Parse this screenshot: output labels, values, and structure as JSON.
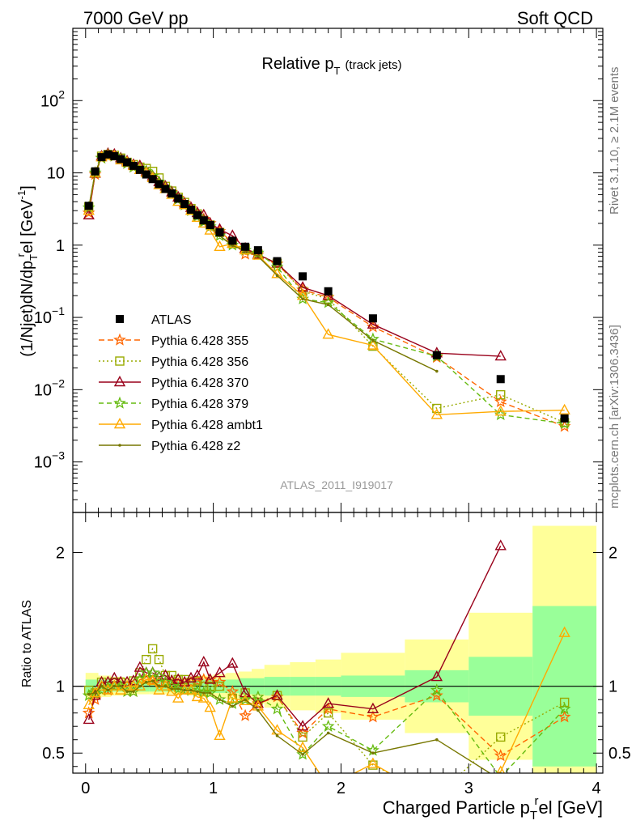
{
  "header": {
    "left": "7000 GeV pp",
    "right": "Soft QCD"
  },
  "side_labels": {
    "rivet": "Rivet 3.1.10, ≥ 2.1M events",
    "mcplots": "mcplots.cern.ch [arXiv:1306.3436]"
  },
  "chart_data": [
    {
      "type": "scatter",
      "title": "Relative p_T (track jets)",
      "title_main": "Relative p",
      "title_sub": "T",
      "title_suffix": "(track jets)",
      "analysis_id": "ATLAS_2011_I919017",
      "ylabel": "(1/Njet)dN/dp_T^rel [GeV^-1]",
      "ylabel_parts": {
        "a": "(1/Njet)dN/dp",
        "sub": "T",
        "sup": "r",
        "b": "el [GeV",
        "exp": "-1",
        "c": "]"
      },
      "yscale": "log",
      "xlim": [
        -0.1,
        4.05
      ],
      "ylim": [
        0.0002,
        1000
      ],
      "ytick_labels": [
        {
          "v": 0.001,
          "base": "10",
          "exp": "−3"
        },
        {
          "v": 0.01,
          "base": "10",
          "exp": "−2"
        },
        {
          "v": 0.1,
          "base": "10",
          "exp": "−1"
        },
        {
          "v": 1,
          "base": "1",
          "exp": ""
        },
        {
          "v": 10,
          "base": "10",
          "exp": ""
        },
        {
          "v": 100,
          "base": "10",
          "exp": "2"
        }
      ],
      "legend_position": "left, mid-height",
      "data": {
        "name": "ATLAS",
        "x": [
          0.025,
          0.075,
          0.125,
          0.175,
          0.225,
          0.275,
          0.325,
          0.375,
          0.425,
          0.475,
          0.525,
          0.575,
          0.625,
          0.675,
          0.725,
          0.775,
          0.825,
          0.875,
          0.925,
          0.975,
          1.05,
          1.15,
          1.25,
          1.35,
          1.5,
          1.7,
          1.9,
          2.25,
          2.75,
          3.25,
          3.75
        ],
        "y": [
          3.5,
          10.5,
          16.5,
          18,
          17,
          15.5,
          14,
          12.5,
          11,
          9.5,
          8.2,
          7,
          6,
          5.2,
          4.4,
          3.7,
          3.1,
          2.6,
          2.2,
          1.9,
          1.5,
          1.15,
          0.95,
          0.85,
          0.6,
          0.37,
          0.23,
          0.097,
          0.03,
          0.014,
          0.004
        ]
      },
      "series": [
        {
          "name": "Pythia 6.428 355",
          "color": "#ff6600",
          "dash": "7,4",
          "marker": "star",
          "x": [
            0.025,
            0.075,
            0.125,
            0.175,
            0.225,
            0.275,
            0.325,
            0.375,
            0.425,
            0.475,
            0.525,
            0.575,
            0.625,
            0.675,
            0.725,
            0.775,
            0.825,
            0.875,
            0.925,
            0.975,
            1.05,
            1.15,
            1.25,
            1.35,
            1.5,
            1.7,
            1.9,
            2.25,
            2.75,
            3.25,
            3.75
          ],
          "y": [
            2.8,
            9.5,
            16,
            17.5,
            17,
            15.5,
            13.5,
            12,
            11.5,
            10,
            8.5,
            7.2,
            6.2,
            5.4,
            4.5,
            3.8,
            3.2,
            2.7,
            2.3,
            2,
            1.55,
            1.1,
            0.75,
            0.74,
            0.55,
            0.24,
            0.19,
            0.074,
            0.028,
            0.0068,
            0.0031
          ]
        },
        {
          "name": "Pythia 6.428 356",
          "color": "#99aa00",
          "dash": "2,3",
          "marker": "square-open",
          "x": [
            0.025,
            0.075,
            0.125,
            0.175,
            0.225,
            0.275,
            0.325,
            0.375,
            0.425,
            0.475,
            0.525,
            0.575,
            0.625,
            0.675,
            0.725,
            0.775,
            0.825,
            0.875,
            0.925,
            0.975,
            1.05,
            1.15,
            1.25,
            1.35,
            1.5,
            1.7,
            1.9,
            2.25,
            2.75,
            3.25,
            3.75
          ],
          "y": [
            3.4,
            10,
            17,
            18,
            17.5,
            16,
            14,
            13,
            12,
            11.5,
            10.5,
            8.5,
            6.5,
            5.6,
            4.6,
            3.9,
            3.2,
            2.7,
            2.2,
            1.9,
            1.5,
            1.05,
            0.9,
            0.75,
            0.56,
            0.23,
            0.18,
            0.04,
            0.0055,
            0.0085,
            0.0035
          ]
        },
        {
          "name": "Pythia 6.428 370",
          "color": "#99001a",
          "dash": "",
          "marker": "triangle-open",
          "x": [
            0.025,
            0.075,
            0.125,
            0.175,
            0.225,
            0.275,
            0.325,
            0.375,
            0.425,
            0.475,
            0.525,
            0.575,
            0.625,
            0.675,
            0.725,
            0.775,
            0.825,
            0.875,
            0.925,
            0.975,
            1.05,
            1.15,
            1.25,
            1.35,
            1.5,
            1.7,
            1.9,
            2.25,
            2.75,
            3.25,
            3.75
          ],
          "y": [
            2.6,
            9.8,
            17,
            18.5,
            18,
            16,
            14.5,
            13,
            12.5,
            10.5,
            9,
            7.5,
            6.5,
            5.4,
            4.6,
            3.8,
            3.3,
            2.8,
            2.6,
            2,
            1.65,
            1.35,
            0.9,
            0.74,
            0.56,
            0.26,
            0.2,
            0.08,
            0.032,
            0.029,
            null
          ]
        },
        {
          "name": "Pythia 6.428 379",
          "color": "#66bb11",
          "dash": "6,4",
          "marker": "star",
          "x": [
            0.025,
            0.075,
            0.125,
            0.175,
            0.225,
            0.275,
            0.325,
            0.375,
            0.425,
            0.475,
            0.525,
            0.575,
            0.625,
            0.675,
            0.725,
            0.775,
            0.825,
            0.875,
            0.925,
            0.975,
            1.05,
            1.15,
            1.25,
            1.35,
            1.5,
            1.7,
            1.9,
            2.25,
            2.75,
            3.25,
            3.75
          ],
          "y": [
            3.3,
            10,
            16,
            17.8,
            17,
            15.5,
            13.5,
            12,
            11.5,
            10.5,
            9,
            7.5,
            6.2,
            5.2,
            4.3,
            3.6,
            3,
            2.5,
            2.1,
            1.8,
            1.35,
            1,
            0.85,
            0.78,
            0.5,
            0.18,
            0.16,
            0.05,
            0.029,
            0.0045,
            0.0034
          ]
        },
        {
          "name": "Pythia 6.428 ambt1",
          "color": "#ffaa00",
          "dash": "",
          "marker": "triangle-open",
          "x": [
            0.025,
            0.075,
            0.125,
            0.175,
            0.225,
            0.275,
            0.325,
            0.375,
            0.425,
            0.475,
            0.525,
            0.575,
            0.625,
            0.675,
            0.725,
            0.775,
            0.825,
            0.875,
            0.925,
            0.975,
            1.05,
            1.15,
            1.25,
            1.35,
            1.5,
            1.7,
            1.9,
            2.25,
            2.75,
            3.25,
            3.75
          ],
          "y": [
            3,
            10,
            16.5,
            17.5,
            17,
            15,
            14,
            12.5,
            11,
            10,
            8.5,
            6.8,
            6,
            5,
            4,
            3.6,
            3,
            2.4,
            2,
            1.6,
            0.95,
            1.05,
            0.85,
            0.72,
            0.4,
            0.2,
            0.058,
            0.041,
            0.0045,
            0.005,
            0.0052
          ]
        },
        {
          "name": "Pythia 6.428 z2",
          "color": "#777700",
          "dash": "",
          "marker": "dot",
          "x": [
            0.025,
            0.075,
            0.125,
            0.175,
            0.225,
            0.275,
            0.325,
            0.375,
            0.425,
            0.475,
            0.525,
            0.575,
            0.625,
            0.675,
            0.725,
            0.775,
            0.825,
            0.875,
            0.925,
            0.975,
            1.05,
            1.15,
            1.25,
            1.35,
            1.5,
            1.7,
            1.9,
            2.25,
            2.75,
            3.25,
            3.75
          ],
          "y": [
            3.3,
            10,
            16.5,
            17.5,
            17,
            15.5,
            13.5,
            12,
            11,
            9.8,
            8.5,
            7,
            6,
            5.1,
            4.3,
            3.6,
            3,
            2.5,
            2.1,
            1.8,
            1.35,
            0.98,
            0.85,
            0.7,
            0.38,
            0.18,
            0.15,
            0.048,
            0.018,
            null,
            null
          ]
        }
      ]
    },
    {
      "type": "line",
      "title": "",
      "ylabel": "Ratio to ATLAS",
      "xlabel": "Charged Particle p_T^rel [GeV]",
      "xlabel_parts": {
        "a": "Charged Particle p",
        "sub": "T",
        "sup": "r",
        "b": "el [GeV]"
      },
      "xlim": [
        -0.1,
        4.05
      ],
      "ylim": [
        0.35,
        2.3
      ],
      "xtick_labels": [
        "0",
        "1",
        "2",
        "3",
        "4"
      ],
      "ytick_labels": [
        "0.5",
        "1",
        "2"
      ],
      "uncertainty_bands": {
        "bin_edges": [
          0,
          0.1,
          0.2,
          0.3,
          0.4,
          0.5,
          0.6,
          0.7,
          0.8,
          0.9,
          1.0,
          1.1,
          1.2,
          1.3,
          1.4,
          1.6,
          1.8,
          2.0,
          2.5,
          3.0,
          3.5,
          4.0
        ],
        "inner": [
          0.05,
          0.05,
          0.04,
          0.04,
          0.04,
          0.04,
          0.04,
          0.04,
          0.04,
          0.05,
          0.05,
          0.05,
          0.06,
          0.06,
          0.07,
          0.07,
          0.07,
          0.08,
          0.12,
          0.22,
          0.6
        ],
        "outer": [
          0.1,
          0.08,
          0.07,
          0.06,
          0.06,
          0.06,
          0.06,
          0.06,
          0.07,
          0.08,
          0.09,
          0.1,
          0.11,
          0.13,
          0.16,
          0.18,
          0.2,
          0.25,
          0.35,
          0.55,
          1.2
        ]
      },
      "series": [
        {
          "name": "Pythia 6.428 355",
          "values": [
            0.8,
            0.9,
            0.97,
            0.97,
            1,
            1,
            0.96,
            0.96,
            1.05,
            1.05,
            1.04,
            1.03,
            1.03,
            1.04,
            1.02,
            1.03,
            1.03,
            1.04,
            1.05,
            1.05,
            1.03,
            0.96,
            0.78,
            0.87,
            0.92,
            0.65,
            0.83,
            0.77,
            0.93,
            0.48,
            0.77
          ]
        },
        {
          "name": "Pythia 6.428 356",
          "values": [
            0.97,
            0.95,
            1.03,
            1,
            1.03,
            1.03,
            1,
            1.04,
            1.1,
            1.2,
            1.28,
            1.2,
            1.08,
            1.08,
            1.05,
            1.05,
            1.03,
            1.04,
            1,
            1,
            1,
            0.91,
            0.95,
            0.88,
            0.93,
            0.62,
            0.8,
            0.41,
            0.18,
            0.62,
            0.88
          ]
        },
        {
          "name": "Pythia 6.428 370",
          "values": [
            0.75,
            0.93,
            1.03,
            1.03,
            1.06,
            1.03,
            1.03,
            1.04,
            1.14,
            1.1,
            1.1,
            1.07,
            1.08,
            1.04,
            1.05,
            1.03,
            1.06,
            1.08,
            1.18,
            1.05,
            1.1,
            1.17,
            0.95,
            0.87,
            0.93,
            0.7,
            0.87,
            0.83,
            1.07,
            2.05,
            null
          ]
        },
        {
          "name": "Pythia 6.428 379",
          "values": [
            0.93,
            0.95,
            0.97,
            0.99,
            1,
            1,
            0.96,
            0.96,
            1.05,
            1.1,
            1.1,
            1.07,
            1.03,
            1,
            0.98,
            0.97,
            0.97,
            0.96,
            0.95,
            0.95,
            0.9,
            0.87,
            0.9,
            0.92,
            0.83,
            0.49,
            0.7,
            0.52,
            0.97,
            0.32,
            0.83
          ]
        },
        {
          "name": "Pythia 6.428 ambt1",
          "values": [
            0.86,
            0.95,
            1,
            0.97,
            1,
            0.97,
            1,
            1,
            1,
            1.05,
            1.04,
            0.97,
            1,
            0.96,
            0.91,
            0.97,
            0.97,
            0.92,
            0.91,
            0.84,
            0.63,
            0.91,
            0.89,
            0.85,
            0.67,
            0.54,
            0.25,
            0.42,
            0.15,
            0.36,
            1.4
          ]
        },
        {
          "name": "Pythia 6.428 z2",
          "values": [
            0.94,
            0.95,
            1,
            0.97,
            1,
            1,
            0.96,
            0.96,
            1,
            1.03,
            1.04,
            1,
            1,
            0.98,
            0.98,
            0.97,
            0.97,
            0.96,
            0.95,
            0.95,
            0.9,
            0.85,
            0.9,
            0.82,
            0.63,
            0.49,
            0.65,
            0.5,
            0.6,
            0.3,
            null
          ]
        }
      ]
    }
  ]
}
